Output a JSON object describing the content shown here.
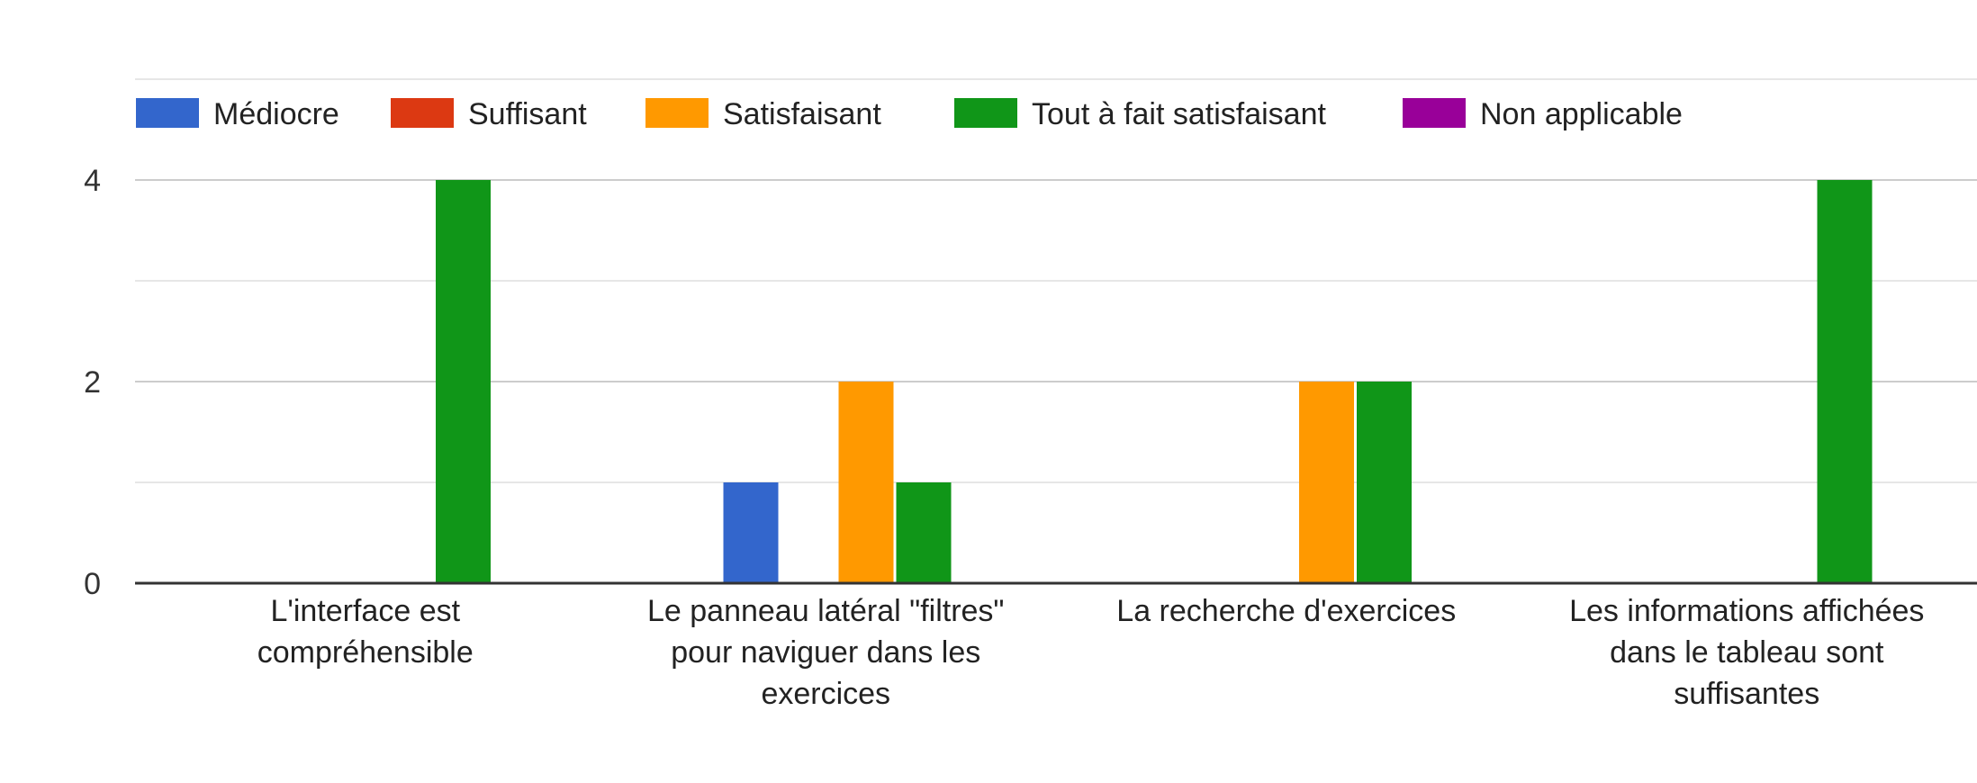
{
  "chart_data": {
    "type": "bar",
    "categories": [
      [
        "L'interface est",
        "compréhensible"
      ],
      [
        "Le panneau latéral \"filtres\"",
        "pour naviguer dans les",
        "exercices"
      ],
      [
        "La recherche d'exercices"
      ],
      [
        "Les informations affichées",
        "dans le tableau sont",
        "suffisantes"
      ]
    ],
    "series": [
      {
        "name": "Médiocre",
        "color": "#3366cc",
        "values": [
          0,
          1,
          0,
          0
        ]
      },
      {
        "name": "Suffisant",
        "color": "#dc3912",
        "values": [
          0,
          0,
          0,
          0
        ]
      },
      {
        "name": "Satisfaisant",
        "color": "#ff9900",
        "values": [
          0,
          2,
          2,
          0
        ]
      },
      {
        "name": "Tout à fait satisfaisant",
        "color": "#109618",
        "values": [
          4,
          1,
          2,
          4
        ]
      },
      {
        "name": "Non applicable",
        "color": "#990099",
        "values": [
          0,
          0,
          0,
          0
        ]
      }
    ],
    "y_ticks": [
      "0",
      "2",
      "4"
    ],
    "ylim": [
      0,
      4
    ],
    "minor_gridlines": [
      1,
      3,
      5
    ],
    "grid": true,
    "legend_position": "top-left",
    "axis_color": "#333333",
    "grid_color": "#cccccc",
    "minor_grid_color": "#e6e6e6"
  }
}
